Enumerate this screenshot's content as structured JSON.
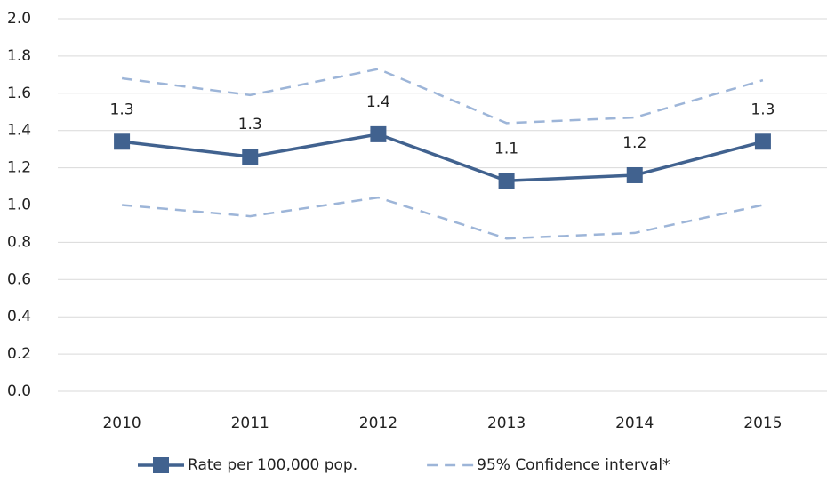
{
  "chart_data": {
    "type": "line",
    "categories": [
      "2010",
      "2011",
      "2012",
      "2013",
      "2014",
      "2015"
    ],
    "series": [
      {
        "name": "Rate per 100,000 pop.",
        "color": "#41628f",
        "marker": "square",
        "values": [
          1.34,
          1.26,
          1.38,
          1.13,
          1.16,
          1.34
        ],
        "value_labels": [
          "1.3",
          "1.3",
          "1.4",
          "1.1",
          "1.2",
          "1.3"
        ]
      },
      {
        "name": "95% Confidence interval*",
        "color": "#9db5d8",
        "dashed": true,
        "values": [
          1.68,
          1.59,
          1.73,
          1.44,
          1.47,
          1.67
        ]
      },
      {
        "color": "#9db5d8",
        "dashed": true,
        "values": [
          1.0,
          0.94,
          1.04,
          0.82,
          0.85,
          1.0
        ]
      }
    ],
    "ylim": [
      0,
      2
    ],
    "yticks": [
      {
        "value": 0,
        "label": "0.0"
      },
      0.2,
      0.4,
      0.6,
      0.8,
      {
        "value": 1,
        "label": "1.0"
      },
      1.2,
      1.4,
      1.6,
      1.8,
      {
        "value": 2,
        "label": "2.0"
      }
    ],
    "grid": true
  }
}
